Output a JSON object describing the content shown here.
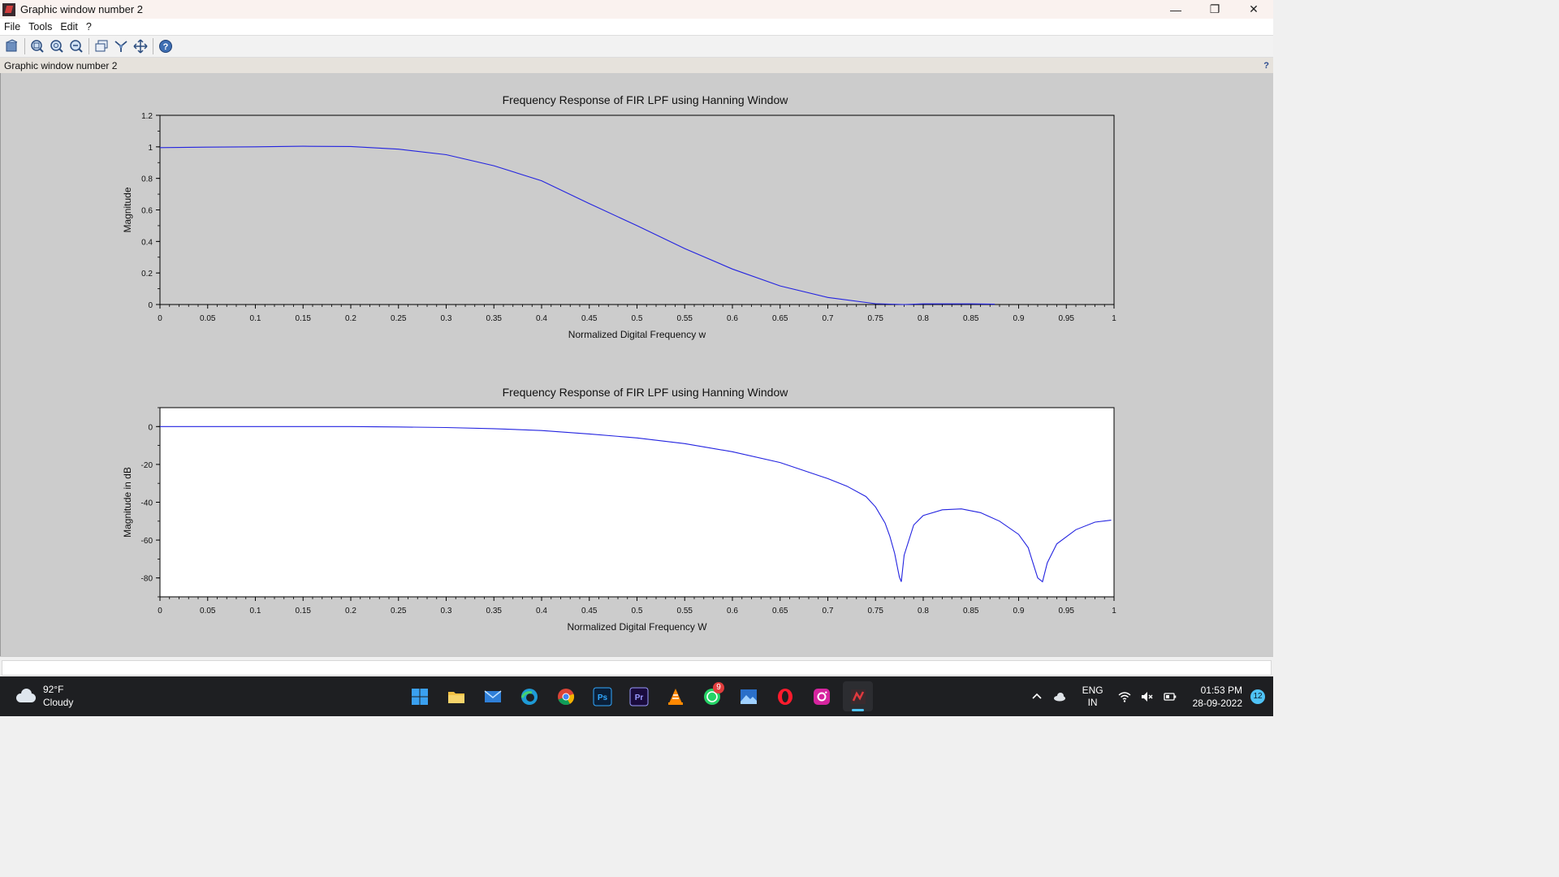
{
  "window": {
    "title": "Graphic window number 2",
    "controls": [
      "minimize",
      "restore",
      "close"
    ]
  },
  "menu": [
    "File",
    "Tools",
    "Edit",
    "?"
  ],
  "toolbar": [
    "rotate-icon",
    "zoom-in-icon",
    "zoom-fit-icon",
    "zoom-out-icon",
    "axes-icon",
    "datatip-icon",
    "pan-icon",
    "help-icon"
  ],
  "infobar": {
    "label": "Graphic window number 2",
    "help": "?"
  },
  "colors": {
    "plot_bg": "#cccccc",
    "series": "#2323e0",
    "axes_top_bg": "#cccccc",
    "axes_bottom_bg": "#ffffff"
  },
  "chart_data": [
    {
      "type": "line",
      "title": "Frequency Response of FIR LPF using Hanning Window",
      "xlabel": "Normalized Digital Frequency w",
      "ylabel": "Magnitude",
      "xlim": [
        0,
        1
      ],
      "ylim": [
        0,
        1.2
      ],
      "xticks": [
        "0",
        "0.05",
        "0.1",
        "0.15",
        "0.2",
        "0.25",
        "0.3",
        "0.35",
        "0.4",
        "0.45",
        "0.5",
        "0.55",
        "0.6",
        "0.65",
        "0.7",
        "0.75",
        "0.8",
        "0.85",
        "0.9",
        "0.95",
        "1"
      ],
      "yticks": [
        "0",
        "0.2",
        "0.4",
        "0.6",
        "0.8",
        "1",
        "1.2"
      ],
      "series": [
        {
          "x": [
            0,
            0.05,
            0.1,
            0.15,
            0.2,
            0.25,
            0.3,
            0.35,
            0.4,
            0.45,
            0.5,
            0.55,
            0.6,
            0.65,
            0.7,
            0.75,
            0.78,
            0.8,
            0.85,
            0.875
          ],
          "y": [
            0.995,
            0.998,
            1.0,
            1.004,
            1.002,
            0.985,
            0.95,
            0.88,
            0.785,
            0.64,
            0.5,
            0.355,
            0.225,
            0.118,
            0.045,
            0.005,
            0.0,
            0.004,
            0.004,
            0.002
          ]
        }
      ]
    },
    {
      "type": "line",
      "title": "Frequency Response of FIR LPF using Hanning Window",
      "xlabel": "Normalized Digital Frequency W",
      "ylabel": "Magnitude in dB",
      "xlim": [
        0,
        1
      ],
      "ylim": [
        -90,
        10
      ],
      "xticks": [
        "0",
        "0.05",
        "0.1",
        "0.15",
        "0.2",
        "0.25",
        "0.3",
        "0.35",
        "0.4",
        "0.45",
        "0.5",
        "0.55",
        "0.6",
        "0.65",
        "0.7",
        "0.75",
        "0.8",
        "0.85",
        "0.9",
        "0.95",
        "1"
      ],
      "yticks": [
        "-80",
        "-60",
        "-40",
        "-20",
        "0"
      ],
      "series": [
        {
          "x": [
            0,
            0.05,
            0.1,
            0.15,
            0.2,
            0.25,
            0.3,
            0.35,
            0.4,
            0.45,
            0.5,
            0.55,
            0.6,
            0.65,
            0.7,
            0.72,
            0.74,
            0.75,
            0.76,
            0.765,
            0.77,
            0.775,
            0.777,
            0.78,
            0.79,
            0.8,
            0.82,
            0.84,
            0.86,
            0.88,
            0.9,
            0.91,
            0.915,
            0.92,
            0.925,
            0.93,
            0.94,
            0.96,
            0.98,
            0.997
          ],
          "y": [
            0,
            0,
            0,
            0,
            0,
            -0.2,
            -0.5,
            -1.1,
            -2.1,
            -3.9,
            -6.0,
            -9.0,
            -13.3,
            -19.0,
            -27.5,
            -31.5,
            -37.0,
            -42.5,
            -51.0,
            -58.0,
            -67.0,
            -79.5,
            -82.0,
            -68.0,
            -52.0,
            -47.0,
            -44.0,
            -43.5,
            -45.5,
            -50.0,
            -57.0,
            -64.0,
            -72.0,
            -80.0,
            -82.0,
            -72.0,
            -62.0,
            -54.5,
            -50.5,
            -49.5
          ]
        }
      ]
    }
  ],
  "taskbar": {
    "weather": {
      "temp": "92°F",
      "condition": "Cloudy"
    },
    "apps": [
      {
        "name": "start-icon",
        "active": false
      },
      {
        "name": "file-explorer-icon",
        "active": false
      },
      {
        "name": "mail-icon",
        "active": false
      },
      {
        "name": "edge-icon",
        "active": false
      },
      {
        "name": "chrome-icon",
        "active": false
      },
      {
        "name": "photoshop-icon",
        "label": "Ps",
        "active": false
      },
      {
        "name": "premiere-icon",
        "label": "Pr",
        "active": false
      },
      {
        "name": "vlc-icon",
        "active": false
      },
      {
        "name": "whatsapp-icon",
        "badge": "9",
        "active": false
      },
      {
        "name": "photos-icon",
        "active": false
      },
      {
        "name": "opera-icon",
        "active": false
      },
      {
        "name": "instagram-icon",
        "active": false
      },
      {
        "name": "scilab-icon",
        "active": true
      }
    ],
    "lang": {
      "line1": "ENG",
      "line2": "IN"
    },
    "time": "01:53 PM",
    "date": "28-09-2022",
    "notifications": "12"
  }
}
